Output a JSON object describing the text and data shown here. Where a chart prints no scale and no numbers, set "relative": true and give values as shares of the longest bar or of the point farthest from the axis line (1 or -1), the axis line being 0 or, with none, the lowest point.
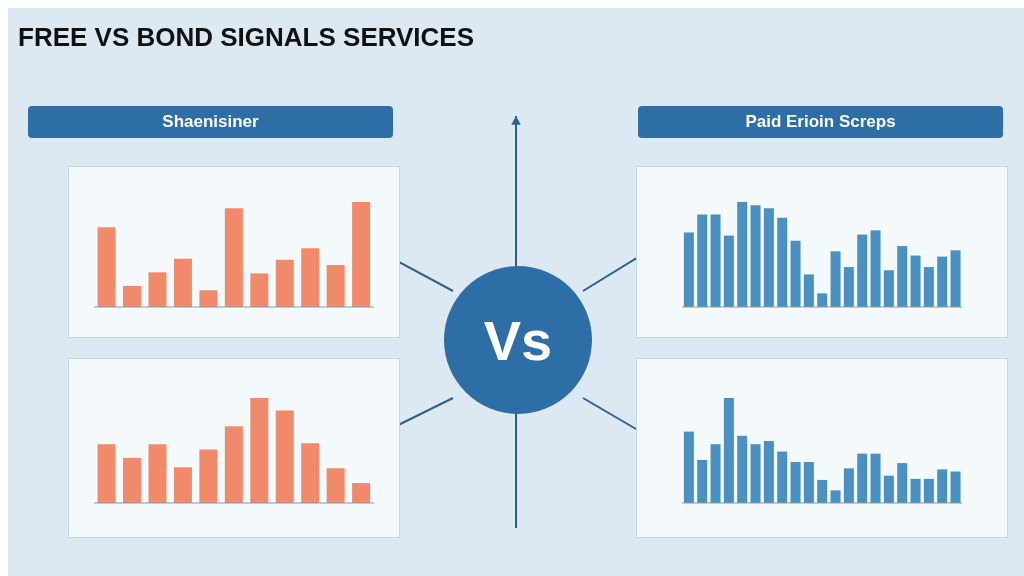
{
  "chart_data": [
    {
      "type": "bar",
      "title": "FREE VS BOND SIGNALS SERVICES",
      "subtitle": "Shaenisiner",
      "annotations": [
        "Vs"
      ],
      "relative": true,
      "color": "#f08a6a",
      "categories": [
        null,
        null,
        null,
        null,
        null,
        null,
        null,
        null,
        null,
        null,
        null
      ],
      "values": [
        0.76,
        0.2,
        0.33,
        0.46,
        0.16,
        0.94,
        0.32,
        0.45,
        0.56,
        0.4,
        1
      ]
    },
    {
      "type": "bar",
      "subtitle": "Paid Erioin Screps",
      "relative": true,
      "color": "#4a90c0",
      "categories": [
        null,
        null,
        null,
        null,
        null,
        null,
        null,
        null,
        null,
        null,
        null,
        null,
        null,
        null,
        null,
        null,
        null,
        null,
        null,
        null,
        null
      ],
      "values": [
        0.71,
        0.88,
        0.88,
        0.68,
        1,
        0.97,
        0.94,
        0.85,
        0.63,
        0.31,
        0.13,
        0.53,
        0.38,
        0.69,
        0.73,
        0.35,
        0.58,
        0.49,
        0.38,
        0.48,
        0.54
      ]
    },
    {
      "type": "bar",
      "relative": true,
      "color": "#f08a6a",
      "categories": [
        null,
        null,
        null,
        null,
        null,
        null,
        null,
        null,
        null,
        null,
        null
      ],
      "values": [
        0.56,
        0.43,
        0.56,
        0.34,
        0.51,
        0.73,
        1,
        0.88,
        0.57,
        0.33,
        0.19
      ]
    },
    {
      "type": "bar",
      "relative": true,
      "color": "#4a90c0",
      "categories": [
        null,
        null,
        null,
        null,
        null,
        null,
        null,
        null,
        null,
        null,
        null,
        null,
        null,
        null,
        null,
        null,
        null,
        null,
        null,
        null,
        null
      ],
      "values": [
        0.68,
        0.41,
        0.56,
        1,
        0.64,
        0.56,
        0.59,
        0.49,
        0.39,
        0.39,
        0.22,
        0.12,
        0.33,
        0.47,
        0.47,
        0.26,
        0.38,
        0.23,
        0.23,
        0.32,
        0.3
      ]
    }
  ]
}
